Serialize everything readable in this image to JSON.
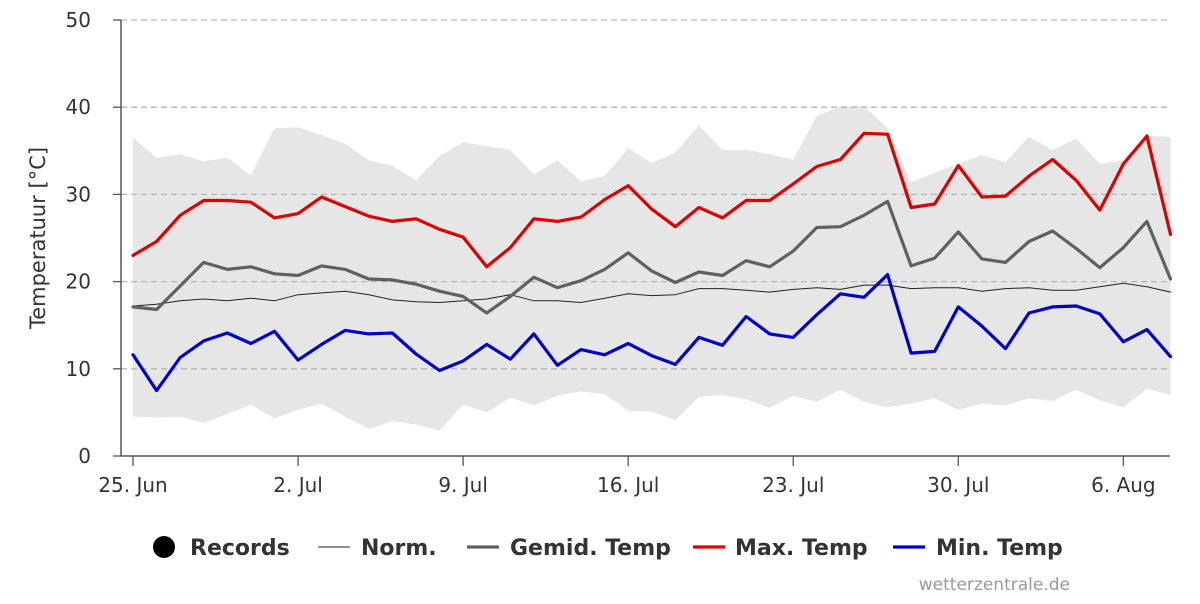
{
  "chart_data": {
    "type": "line",
    "ylabel": "Temperatuur [°C]",
    "xlabel": "",
    "ylim": [
      0,
      50
    ],
    "yticks": [
      0,
      10,
      20,
      30,
      40,
      50
    ],
    "x_start": "25. Jun",
    "x_end": "8. Aug",
    "xtick_labels": [
      "25. Jun",
      "2. Jul",
      "9. Jul",
      "16. Jul",
      "23. Jul",
      "30. Jul",
      "6. Aug"
    ],
    "grid": true,
    "legend": "bottom",
    "records_band": {
      "name": "Records",
      "color": "#e6e6e6",
      "high": [
        36.5,
        34.2,
        34.6,
        33.8,
        34.2,
        32.2,
        37.6,
        37.7,
        36.8,
        35.8,
        33.9,
        33.3,
        31.6,
        34.4,
        36.0,
        35.5,
        35.1,
        32.3,
        33.9,
        31.5,
        32.1,
        35.3,
        33.6,
        34.8,
        37.9,
        35.1,
        35.1,
        34.6,
        34.0,
        39.0,
        40.1,
        40.1,
        37.6,
        31.4,
        32.5,
        33.5,
        34.5,
        33.7,
        36.6,
        35.1,
        36.4,
        33.5,
        33.9,
        36.7,
        36.6
      ],
      "low": [
        4.5,
        4.4,
        4.5,
        3.8,
        4.8,
        5.9,
        4.3,
        5.3,
        6.0,
        4.5,
        3.1,
        4.0,
        3.6,
        2.9,
        5.9,
        5.0,
        6.7,
        5.8,
        6.9,
        7.4,
        7.1,
        5.2,
        5.1,
        4.1,
        6.8,
        7.0,
        6.5,
        5.5,
        6.9,
        6.2,
        7.6,
        6.2,
        5.6,
        6.0,
        6.6,
        5.3,
        6.0,
        5.8,
        6.6,
        6.3,
        7.6,
        6.4,
        5.6,
        7.7,
        7.0
      ]
    },
    "series": [
      {
        "name": "Norm.",
        "color": "#222222",
        "width": 1,
        "values": [
          17.2,
          17.4,
          17.8,
          18.0,
          17.8,
          18.1,
          17.8,
          18.5,
          18.7,
          18.9,
          18.5,
          17.9,
          17.7,
          17.6,
          17.8,
          18.0,
          18.5,
          17.8,
          17.8,
          17.6,
          18.1,
          18.6,
          18.4,
          18.5,
          19.2,
          19.2,
          19.0,
          18.8,
          19.1,
          19.3,
          19.1,
          19.6,
          19.6,
          19.2,
          19.3,
          19.3,
          18.9,
          19.2,
          19.3,
          19.0,
          19.0,
          19.4,
          19.8,
          19.4,
          18.8
        ]
      },
      {
        "name": "Gemid. Temp",
        "color": "#606060",
        "width": 3.2,
        "values": [
          17.1,
          16.8,
          19.5,
          22.2,
          21.4,
          21.7,
          20.9,
          20.7,
          21.8,
          21.4,
          20.3,
          20.2,
          19.7,
          18.9,
          18.3,
          16.4,
          18.3,
          20.5,
          19.3,
          20.1,
          21.4,
          23.3,
          21.2,
          19.9,
          21.1,
          20.7,
          22.4,
          21.7,
          23.5,
          26.2,
          26.3,
          27.6,
          29.2,
          21.8,
          22.7,
          25.7,
          22.6,
          22.2,
          24.6,
          25.8,
          23.8,
          21.6,
          23.9,
          26.9,
          20.3
        ]
      },
      {
        "name": "Max. Temp",
        "color": "#dd0000",
        "width": 3.2,
        "values": [
          23.0,
          24.6,
          27.6,
          29.3,
          29.3,
          29.1,
          27.3,
          27.8,
          29.7,
          28.6,
          27.5,
          26.9,
          27.2,
          26.0,
          25.1,
          21.7,
          23.9,
          27.2,
          26.9,
          27.4,
          29.4,
          31.0,
          28.3,
          26.3,
          28.5,
          27.3,
          29.3,
          29.3,
          31.2,
          33.2,
          34.0,
          37.0,
          36.9,
          28.5,
          28.9,
          33.3,
          29.7,
          29.8,
          32.1,
          34.0,
          31.6,
          28.2,
          33.5,
          36.7,
          25.4
        ]
      },
      {
        "name": "Min. Temp",
        "color": "#0000cc",
        "width": 3.2,
        "values": [
          11.6,
          7.5,
          11.3,
          13.2,
          14.1,
          12.9,
          14.3,
          11.0,
          12.8,
          14.4,
          14.0,
          14.1,
          11.7,
          9.8,
          10.9,
          12.8,
          11.1,
          14.0,
          10.4,
          12.2,
          11.6,
          12.9,
          11.5,
          10.5,
          13.6,
          12.7,
          16.0,
          14.0,
          13.6,
          16.2,
          18.6,
          18.2,
          20.8,
          11.8,
          12.0,
          17.1,
          14.9,
          12.3,
          16.4,
          17.1,
          17.2,
          16.3,
          13.1,
          14.5,
          11.4
        ]
      }
    ]
  },
  "legend_items": [
    "Records",
    "Norm.",
    "Gemid. Temp",
    "Max. Temp",
    "Min. Temp"
  ],
  "credit": "wetterzentrale.de"
}
